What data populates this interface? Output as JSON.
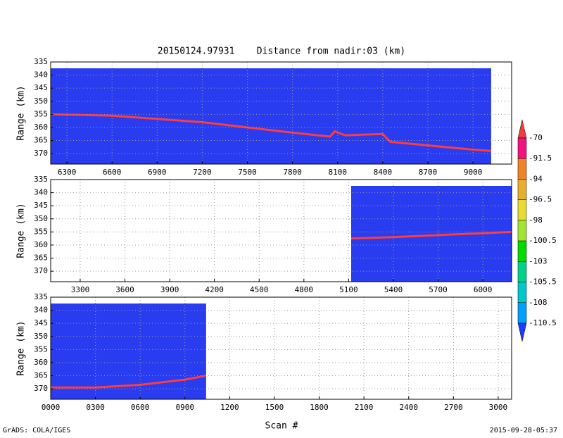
{
  "title": "20150124.97931    Distance from nadir:03 (km)",
  "xlabel": "Scan #",
  "footer_left": "GrADS: COLA/IGES",
  "footer_right": "2015-09-28-05:37",
  "colorbar": {
    "levels": [
      -70,
      -91.5,
      -94,
      -96.5,
      -98,
      -100.5,
      -103,
      -105.5,
      -108,
      -110.5
    ],
    "colors": [
      "#f03c3c",
      "#f0147e",
      "#f08228",
      "#e6af2d",
      "#e6dc32",
      "#a0e632",
      "#00dc00",
      "#00d28c",
      "#00c8c8",
      "#00a0ff",
      "#1e3cff"
    ]
  },
  "chart_data": [
    {
      "type": "line",
      "ylabel": "Range (km)",
      "xlim": [
        6192,
        9257
      ],
      "ylim": [
        335,
        374
      ],
      "y_inverted": true,
      "grid": true,
      "background": "#2a3cf0",
      "xticks": [
        6300,
        6600,
        6900,
        7200,
        7500,
        7800,
        8100,
        8400,
        8700,
        9000
      ],
      "yticks": [
        335,
        340,
        345,
        350,
        355,
        360,
        365,
        370
      ],
      "series": [
        {
          "color": "#ff3c3c",
          "x": [
            6192,
            6600,
            7200,
            7800,
            8050,
            8080,
            8150,
            8400,
            8450,
            9000,
            9121
          ],
          "values": [
            355,
            355.5,
            358,
            362,
            363.5,
            361.5,
            363,
            362.5,
            365.5,
            368.5,
            369
          ]
        }
      ]
    },
    {
      "type": "line",
      "ylabel": "Range (km)",
      "xlim": [
        3102,
        6193
      ],
      "ylim": [
        335,
        374
      ],
      "y_inverted": true,
      "grid": true,
      "background": "#2a3cf0",
      "xticks": [
        3300,
        3600,
        3900,
        4200,
        4500,
        4800,
        5100,
        5400,
        5700,
        6000
      ],
      "yticks": [
        335,
        340,
        345,
        350,
        355,
        360,
        365,
        370
      ],
      "series": [
        {
          "color": "#ff3c3c",
          "x": [
            5117,
            5400,
            5700,
            6000,
            6193
          ],
          "values": [
            357.5,
            357,
            356.2,
            355.5,
            355
          ]
        }
      ]
    },
    {
      "type": "line",
      "ylabel": "Range (km)",
      "xlim": [
        0,
        3090
      ],
      "ylim": [
        335,
        374
      ],
      "y_inverted": true,
      "grid": true,
      "background": "#2a3cf0",
      "xticks": [
        {
          "value": 0,
          "label": "0000"
        },
        {
          "value": 300,
          "label": "0300"
        },
        {
          "value": 600,
          "label": "0600"
        },
        {
          "value": 900,
          "label": "0900"
        },
        1200,
        1500,
        1800,
        2100,
        2400,
        2700,
        3000
      ],
      "yticks": [
        335,
        340,
        345,
        350,
        355,
        360,
        365,
        370
      ],
      "series": [
        {
          "color": "#ff3c3c",
          "x": [
            0,
            300,
            600,
            900,
            1042
          ],
          "values": [
            369.5,
            369.5,
            368.5,
            366.5,
            365
          ]
        }
      ]
    }
  ]
}
